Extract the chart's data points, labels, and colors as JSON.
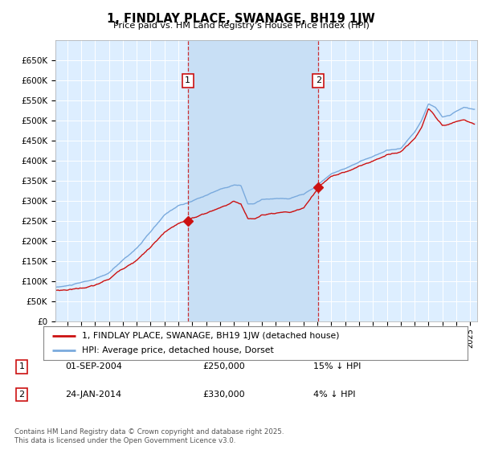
{
  "title": "1, FINDLAY PLACE, SWANAGE, BH19 1JW",
  "subtitle": "Price paid vs. HM Land Registry's House Price Index (HPI)",
  "ylim": [
    0,
    700000
  ],
  "yticks": [
    0,
    50000,
    100000,
    150000,
    200000,
    250000,
    300000,
    350000,
    400000,
    450000,
    500000,
    550000,
    600000,
    650000
  ],
  "xlim_start": 1995.25,
  "xlim_end": 2025.5,
  "transaction1_x": 2004.67,
  "transaction1_y": 250000,
  "transaction2_x": 2014.07,
  "transaction2_y": 330000,
  "background_color": "#ffffff",
  "plot_bg_color": "#ddeeff",
  "shade_color": "#c8dff5",
  "grid_color": "#ffffff",
  "hpi_line_color": "#7aaadd",
  "price_line_color": "#cc1111",
  "legend_label1": "1, FINDLAY PLACE, SWANAGE, BH19 1JW (detached house)",
  "legend_label2": "HPI: Average price, detached house, Dorset",
  "annotation1_date": "01-SEP-2004",
  "annotation1_price": "£250,000",
  "annotation1_hpi": "15% ↓ HPI",
  "annotation2_date": "24-JAN-2014",
  "annotation2_price": "£330,000",
  "annotation2_hpi": "4% ↓ HPI",
  "footer": "Contains HM Land Registry data © Crown copyright and database right 2025.\nThis data is licensed under the Open Government Licence v3.0."
}
